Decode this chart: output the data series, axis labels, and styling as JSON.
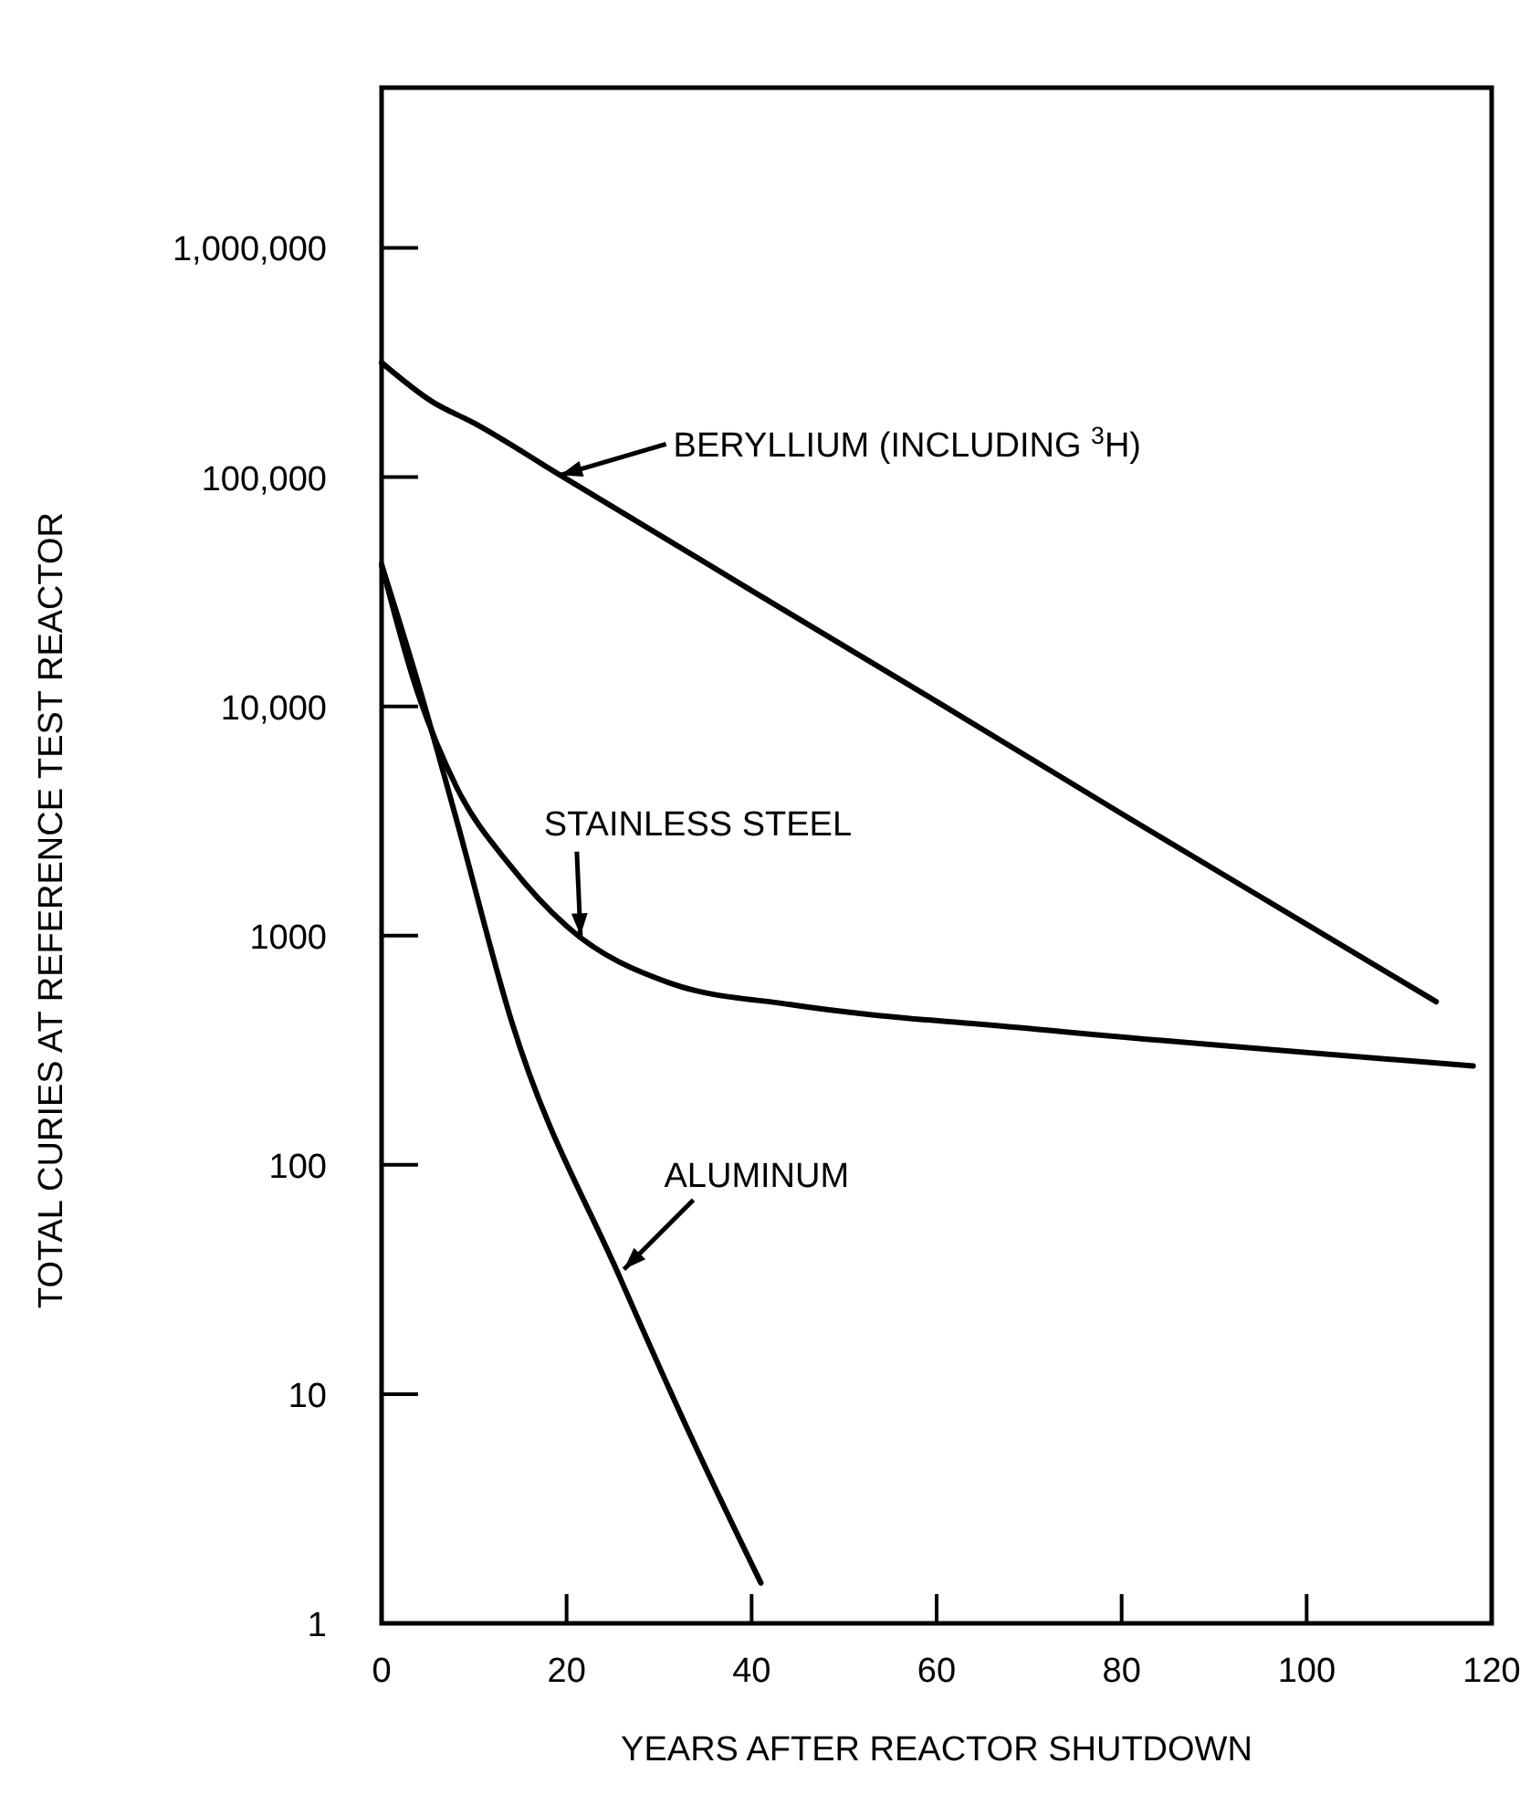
{
  "chart_data": {
    "type": "line",
    "xlabel": "YEARS AFTER REACTOR SHUTDOWN",
    "ylabel": "TOTAL CURIES AT REFERENCE TEST REACTOR",
    "log": "y",
    "grid": false,
    "marker": "none",
    "line_style": "solid",
    "xlim": [
      0,
      120
    ],
    "xticks": [
      0,
      20,
      40,
      60,
      80,
      100,
      120
    ],
    "ylim": [
      1,
      5000000
    ],
    "yticks": [
      1,
      10,
      100,
      1000,
      {
        "value": 10000,
        "label": "10,000"
      },
      {
        "value": 100000,
        "label": "100,000"
      },
      {
        "value": 1000000,
        "label": "1,000,000"
      }
    ],
    "series": [
      {
        "color": "#000000",
        "x": [
          0,
          5.5,
          10,
          19.3,
          40,
          60,
          80,
          100,
          114
        ],
        "values": [
          316000,
          213000,
          172000,
          102000,
          32000,
          10500,
          3400,
          1120,
          515
        ]
      },
      {
        "color": "#000000",
        "x": [
          0,
          3.6,
          8.1,
          14,
          20,
          31.2,
          44.2,
          71,
          118
        ],
        "values": [
          41500,
          12500,
          4450,
          2000,
          1100,
          620,
          500,
          390,
          270
        ]
      },
      {
        "color": "#000000",
        "x": [
          0,
          4.1,
          8.1,
          14,
          25.8,
          34.3,
          41
        ],
        "values": [
          41500,
          12000,
          3200,
          430,
          32,
          5.5,
          1.5
        ]
      }
    ],
    "annotations": [
      {
        "text": "BERYLLIUM (INCLUDING $^{3}$H)",
        "x": 19.3,
        "y": 102000
      },
      {
        "text": "STAINLESS STEEL",
        "x": 21.5,
        "y": 1000
      },
      {
        "text": "ALUMINUM",
        "x": 26.2,
        "y": 35
      }
    ]
  }
}
